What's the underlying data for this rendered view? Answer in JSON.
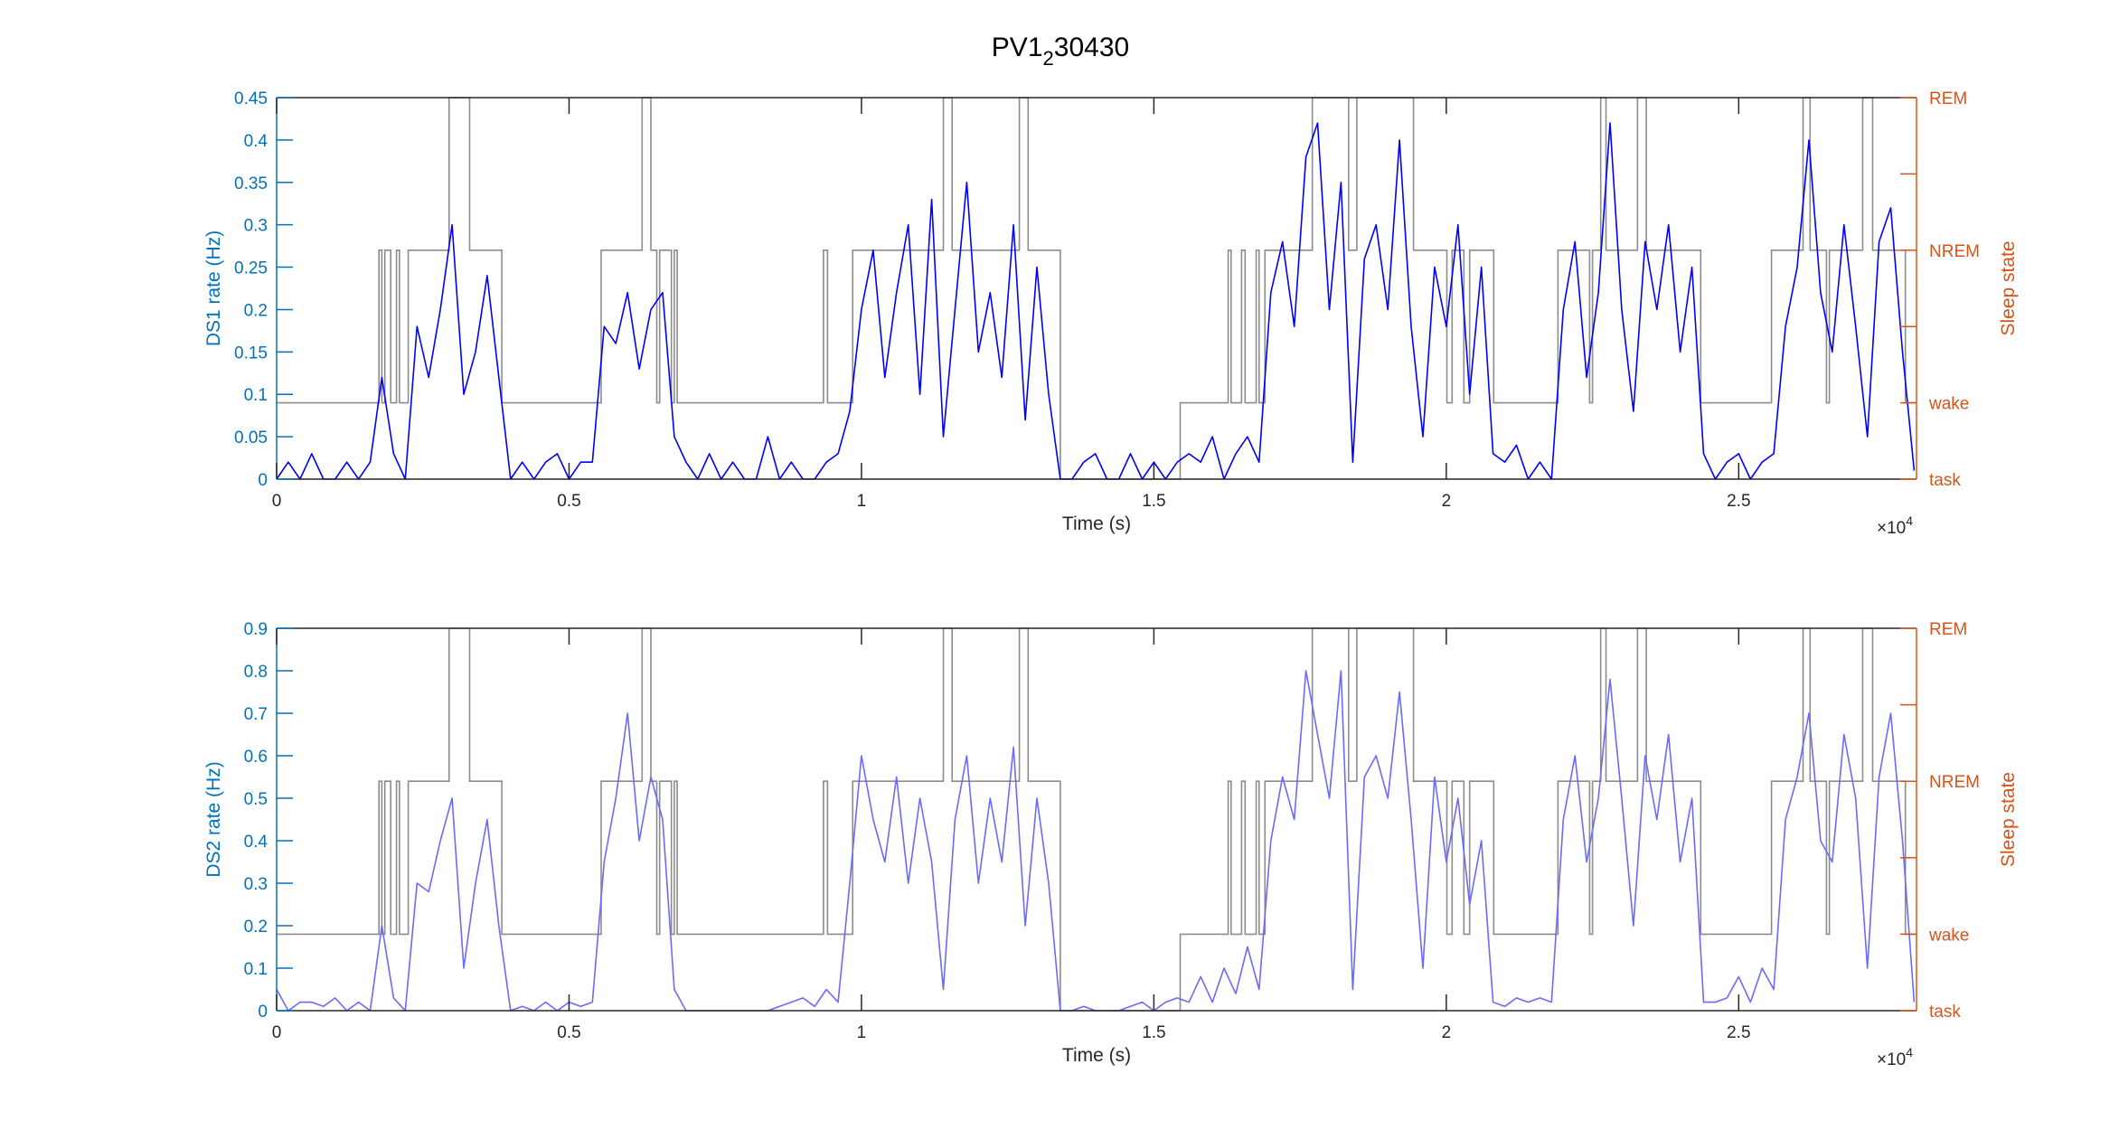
{
  "colors": {
    "left_axis": "#0072BD",
    "right_axis": "#D95319",
    "hypnogram": "#8c8c8c",
    "ds1": "#0000FF",
    "ds2": "#6A6AFF",
    "frame": "#262626"
  },
  "chart_data": {
    "title": "PV1_230430",
    "type": "line",
    "sample_step_s": 200,
    "x_multiplier": "×10",
    "x_multiplier_exp": "4",
    "hypnogram": {
      "state_codes": {
        "task": 0,
        "wake": 1,
        "NREM": 3,
        "REM": 5
      },
      "segments": [
        [
          0,
          1750,
          1
        ],
        [
          1750,
          1800,
          3
        ],
        [
          1800,
          1850,
          1
        ],
        [
          1850,
          1950,
          3
        ],
        [
          1950,
          2050,
          1
        ],
        [
          2050,
          2100,
          3
        ],
        [
          2100,
          2250,
          1
        ],
        [
          2250,
          2950,
          3
        ],
        [
          2950,
          3300,
          5
        ],
        [
          3300,
          3850,
          3
        ],
        [
          3850,
          5550,
          1
        ],
        [
          5550,
          6250,
          3
        ],
        [
          6250,
          6400,
          5
        ],
        [
          6400,
          6500,
          3
        ],
        [
          6500,
          6550,
          1
        ],
        [
          6550,
          6750,
          3
        ],
        [
          6750,
          6800,
          1
        ],
        [
          6800,
          6850,
          3
        ],
        [
          6850,
          9350,
          1
        ],
        [
          9350,
          9420,
          3
        ],
        [
          9420,
          9850,
          1
        ],
        [
          9850,
          11400,
          3
        ],
        [
          11400,
          11550,
          5
        ],
        [
          11550,
          12700,
          3
        ],
        [
          12700,
          12850,
          5
        ],
        [
          12850,
          13400,
          3
        ],
        [
          13400,
          15450,
          0
        ],
        [
          15450,
          16270,
          1
        ],
        [
          16270,
          16320,
          3
        ],
        [
          16320,
          16500,
          1
        ],
        [
          16500,
          16560,
          3
        ],
        [
          16560,
          16750,
          1
        ],
        [
          16750,
          16800,
          3
        ],
        [
          16800,
          16900,
          1
        ],
        [
          16900,
          17710,
          3
        ],
        [
          17710,
          18330,
          5
        ],
        [
          18330,
          18470,
          3
        ],
        [
          18470,
          19440,
          5
        ],
        [
          19440,
          20010,
          3
        ],
        [
          20010,
          20100,
          1
        ],
        [
          20100,
          20300,
          3
        ],
        [
          20300,
          20400,
          1
        ],
        [
          20400,
          20810,
          3
        ],
        [
          20810,
          21910,
          1
        ],
        [
          21910,
          22450,
          3
        ],
        [
          22450,
          22500,
          1
        ],
        [
          22500,
          22640,
          3
        ],
        [
          22640,
          22730,
          5
        ],
        [
          22730,
          23270,
          3
        ],
        [
          23270,
          23420,
          5
        ],
        [
          23420,
          24350,
          3
        ],
        [
          24350,
          25560,
          1
        ],
        [
          25560,
          26100,
          3
        ],
        [
          26100,
          26220,
          5
        ],
        [
          26220,
          26500,
          3
        ],
        [
          26500,
          26550,
          1
        ],
        [
          26550,
          27120,
          3
        ],
        [
          27120,
          27290,
          5
        ],
        [
          27290,
          27850,
          3
        ],
        [
          27850,
          28040,
          1
        ]
      ]
    },
    "panels": [
      {
        "ylabel": "DS1 rate (Hz)",
        "xlabel": "Time (s)",
        "ylim": [
          0,
          0.45
        ],
        "xlim": [
          0,
          28040
        ],
        "yticks": [
          "0",
          "0.05",
          "0.1",
          "0.15",
          "0.2",
          "0.25",
          "0.3",
          "0.35",
          "0.4",
          "0.45"
        ],
        "xticks": [
          "0",
          "0.5",
          "1",
          "1.5",
          "2",
          "2.5"
        ],
        "right_ylabel": "Sleep state",
        "right_yticks": [
          "task",
          "wake",
          "",
          "NREM",
          "",
          "REM"
        ],
        "series_name": "DS1",
        "values": [
          0,
          0.02,
          0,
          0.03,
          0,
          0,
          0.02,
          0,
          0.02,
          0.12,
          0.03,
          0,
          0.18,
          0.12,
          0.2,
          0.3,
          0.1,
          0.15,
          0.24,
          0.12,
          0,
          0.02,
          0,
          0.02,
          0.03,
          0,
          0.02,
          0.02,
          0.18,
          0.16,
          0.22,
          0.13,
          0.2,
          0.22,
          0.05,
          0.02,
          0,
          0.03,
          0,
          0.02,
          0,
          0,
          0.05,
          0,
          0.02,
          0,
          0,
          0.02,
          0.03,
          0.08,
          0.2,
          0.27,
          0.12,
          0.22,
          0.3,
          0.1,
          0.33,
          0.05,
          0.2,
          0.35,
          0.15,
          0.22,
          0.12,
          0.3,
          0.07,
          0.25,
          0.1,
          0,
          0,
          0.02,
          0.03,
          0,
          0,
          0.03,
          0,
          0.02,
          0,
          0.02,
          0.03,
          0.02,
          0.05,
          0,
          0.03,
          0.05,
          0.02,
          0.22,
          0.28,
          0.18,
          0.38,
          0.42,
          0.2,
          0.35,
          0.02,
          0.26,
          0.3,
          0.2,
          0.4,
          0.18,
          0.05,
          0.25,
          0.18,
          0.3,
          0.1,
          0.25,
          0.03,
          0.02,
          0.04,
          0,
          0.02,
          0,
          0.2,
          0.28,
          0.12,
          0.22,
          0.42,
          0.2,
          0.08,
          0.28,
          0.2,
          0.3,
          0.15,
          0.25,
          0.03,
          0,
          0.02,
          0.03,
          0,
          0.02,
          0.03,
          0.18,
          0.25,
          0.4,
          0.22,
          0.15,
          0.3,
          0.18,
          0.05,
          0.28,
          0.32,
          0.15,
          0.01
        ]
      },
      {
        "ylabel": "DS2 rate (Hz)",
        "xlabel": "Time (s)",
        "ylim": [
          0,
          0.9
        ],
        "xlim": [
          0,
          28040
        ],
        "yticks": [
          "0",
          "0.1",
          "0.2",
          "0.3",
          "0.4",
          "0.5",
          "0.6",
          "0.7",
          "0.8",
          "0.9"
        ],
        "xticks": [
          "0",
          "0.5",
          "1",
          "1.5",
          "2",
          "2.5"
        ],
        "right_ylabel": "Sleep state",
        "right_yticks": [
          "task",
          "wake",
          "",
          "NREM",
          "",
          "REM"
        ],
        "series_name": "DS2",
        "values": [
          0.05,
          0,
          0.02,
          0.02,
          0.01,
          0.03,
          0,
          0.02,
          0,
          0.2,
          0.03,
          0,
          0.3,
          0.28,
          0.4,
          0.5,
          0.1,
          0.3,
          0.45,
          0.2,
          0,
          0.01,
          0,
          0.02,
          0,
          0.02,
          0.01,
          0.02,
          0.35,
          0.5,
          0.7,
          0.4,
          0.55,
          0.45,
          0.05,
          0,
          0,
          0,
          0,
          0,
          0,
          0,
          0,
          0.01,
          0.02,
          0.03,
          0.01,
          0.05,
          0.02,
          0.3,
          0.6,
          0.45,
          0.35,
          0.55,
          0.3,
          0.5,
          0.35,
          0.05,
          0.45,
          0.6,
          0.3,
          0.5,
          0.35,
          0.62,
          0.2,
          0.5,
          0.3,
          0,
          0,
          0.01,
          0,
          0,
          0,
          0.01,
          0.02,
          0,
          0.02,
          0.03,
          0.02,
          0.08,
          0.02,
          0.1,
          0.04,
          0.15,
          0.05,
          0.4,
          0.55,
          0.45,
          0.8,
          0.65,
          0.5,
          0.8,
          0.05,
          0.55,
          0.6,
          0.5,
          0.75,
          0.45,
          0.1,
          0.55,
          0.35,
          0.5,
          0.25,
          0.4,
          0.02,
          0.01,
          0.03,
          0.02,
          0.03,
          0.02,
          0.45,
          0.6,
          0.35,
          0.5,
          0.78,
          0.5,
          0.2,
          0.6,
          0.45,
          0.65,
          0.35,
          0.5,
          0.02,
          0.02,
          0.03,
          0.08,
          0.02,
          0.1,
          0.05,
          0.45,
          0.55,
          0.7,
          0.4,
          0.35,
          0.65,
          0.5,
          0.1,
          0.55,
          0.7,
          0.4,
          0.02
        ]
      }
    ]
  }
}
